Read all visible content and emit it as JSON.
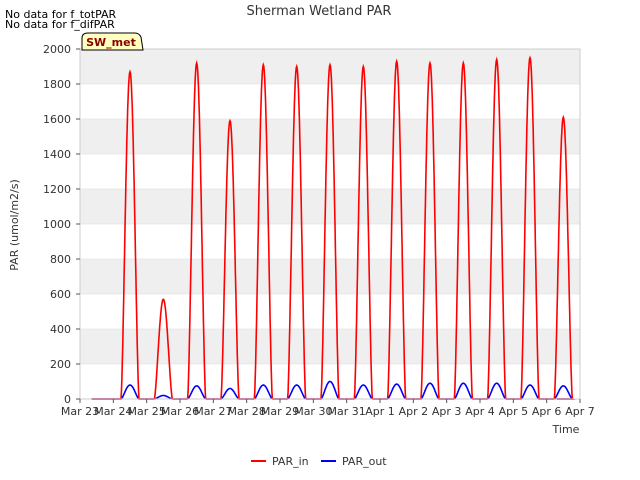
{
  "notes": [
    "No data for f_totPAR",
    "No data for f_difPAR"
  ],
  "badge": "SW_met",
  "colors": {
    "par_in": "#ff0000",
    "par_out": "#0000ff",
    "band": "#efefef",
    "badge_bg": "#ffffc0"
  },
  "chart_data": {
    "type": "line",
    "title": "Sherman Wetland PAR",
    "xlabel": "Time",
    "ylabel": "PAR (umol/m2/s)",
    "ylim": [
      0,
      2000
    ],
    "yticks": [
      0,
      200,
      400,
      600,
      800,
      1000,
      1200,
      1400,
      1600,
      1800,
      2000
    ],
    "xticks": [
      "Mar 23",
      "Mar 24",
      "Mar 25",
      "Mar 26",
      "Mar 27",
      "Mar 28",
      "Mar 29",
      "Mar 30",
      "Mar 31",
      "Apr 1",
      "Apr 2",
      "Apr 3",
      "Apr 4",
      "Apr 5",
      "Apr 6",
      "Apr 7"
    ],
    "grid": true,
    "legend_position": "bottom",
    "day_length_hours": 13,
    "series": [
      {
        "name": "PAR_in",
        "color": "#ff0000",
        "daily_peaks": [
          1870,
          570,
          1920,
          1590,
          1910,
          1900,
          1910,
          1900,
          1930,
          1920,
          1920,
          1940,
          1950,
          1610
        ]
      },
      {
        "name": "PAR_out",
        "color": "#0000ff",
        "daily_peaks": [
          80,
          20,
          75,
          60,
          80,
          80,
          100,
          80,
          85,
          90,
          90,
          90,
          80,
          75
        ]
      }
    ]
  }
}
